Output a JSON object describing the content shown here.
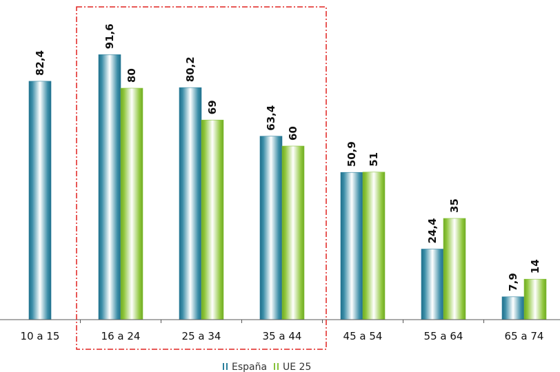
{
  "chart_data": {
    "type": "bar",
    "categories": [
      "10 a 15",
      "16 a 24",
      "25 a 34",
      "35 a 44",
      "45 a 54",
      "55 a 64",
      "65 a 74"
    ],
    "series": [
      {
        "name": "España",
        "values": [
          82.4,
          91.6,
          80.2,
          63.4,
          50.9,
          24.4,
          7.9
        ],
        "labels": [
          "82,4",
          "91,6",
          "80,2",
          "63,4",
          "50,9",
          "24,4",
          "7,9"
        ]
      },
      {
        "name": "UE 25",
        "values": [
          null,
          80,
          69,
          60,
          51,
          35,
          14
        ],
        "labels": [
          null,
          "80",
          "69",
          "60",
          "51",
          "35",
          "14"
        ]
      }
    ],
    "title": "",
    "xlabel": "",
    "ylabel": "",
    "ylim": [
      0,
      100
    ],
    "grid": false,
    "legend_position": "bottom",
    "highlight": {
      "categories": [
        "16 a 24",
        "25 a 34",
        "35 a 44"
      ],
      "style": "red dash-dot box"
    },
    "colors": {
      "españa": "#2a7f9c",
      "ue25": "#86c23a",
      "highlight": "#e0201e",
      "axis": "#555555"
    }
  }
}
